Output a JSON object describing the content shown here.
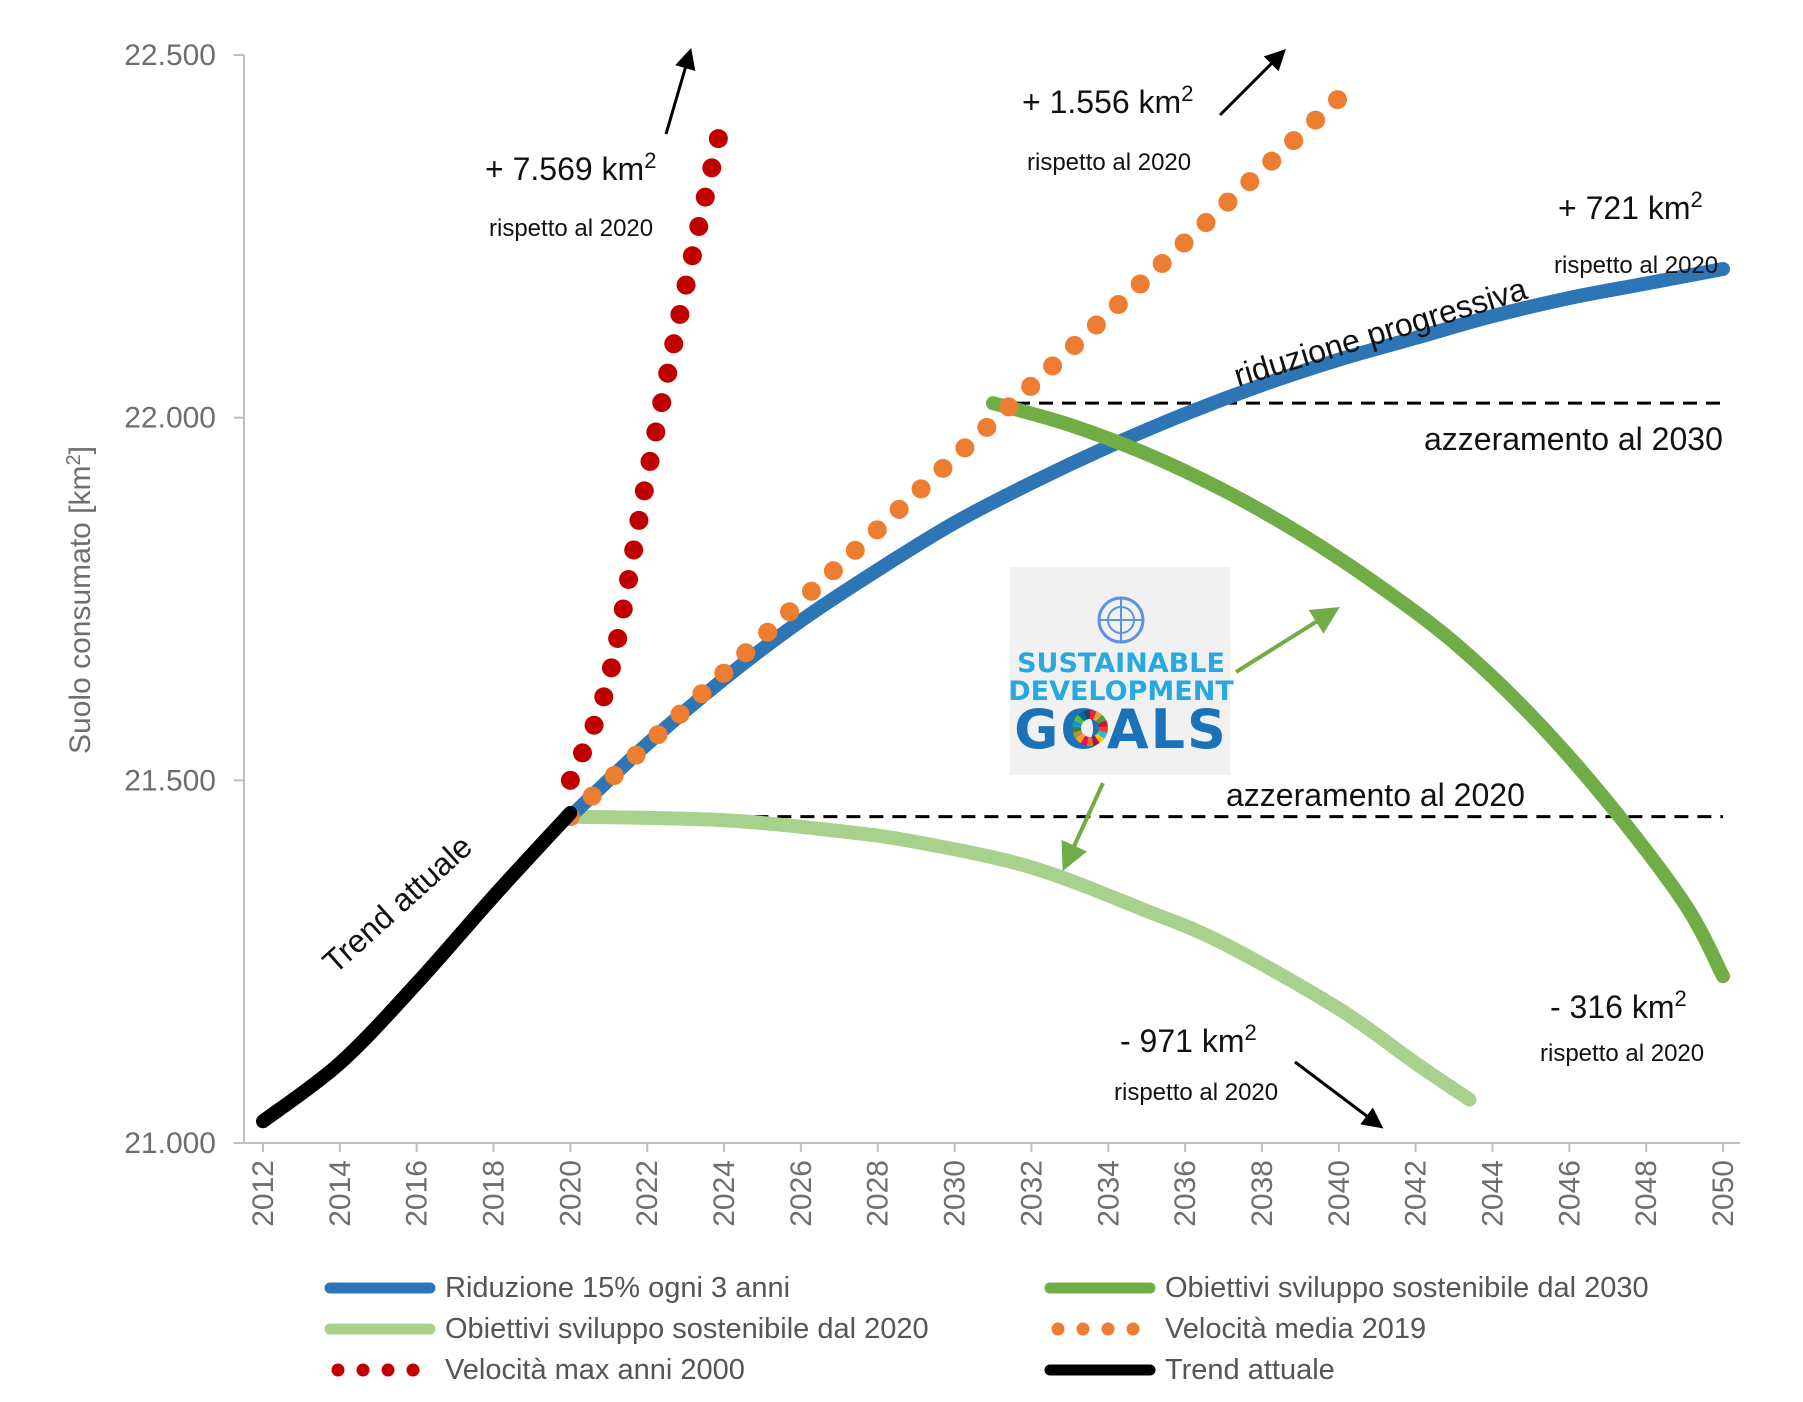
{
  "chart_data": {
    "type": "line",
    "ylabel": "Suolo consumato [km²]",
    "ylabel_unit_sup": "2",
    "xlabel": "",
    "xlim": [
      2012,
      2050
    ],
    "ylim": [
      21000,
      22500
    ],
    "x_ticks": [
      "2012",
      "2014",
      "2016",
      "2018",
      "2020",
      "2022",
      "2024",
      "2026",
      "2028",
      "2030",
      "2032",
      "2034",
      "2036",
      "2038",
      "2040",
      "2042",
      "2044",
      "2046",
      "2048",
      "2050"
    ],
    "y_ticks": [
      {
        "value": 21000,
        "label": "21.000"
      },
      {
        "value": 21500,
        "label": "21.500"
      },
      {
        "value": 22000,
        "label": "22.000"
      },
      {
        "value": 22500,
        "label": "22.500"
      }
    ],
    "grid": false,
    "legend_position": "bottom",
    "series": [
      {
        "name": "Riduzione 15% ogni 3 anni",
        "color": "#2e75b6",
        "style": "solid",
        "points": [
          [
            2020,
            21450
          ],
          [
            2022,
            21550
          ],
          [
            2024,
            21640
          ],
          [
            2026,
            21720
          ],
          [
            2028,
            21790
          ],
          [
            2030,
            21855
          ],
          [
            2032,
            21910
          ],
          [
            2034,
            21960
          ],
          [
            2036,
            22005
          ],
          [
            2038,
            22045
          ],
          [
            2040,
            22080
          ],
          [
            2042,
            22110
          ],
          [
            2044,
            22140
          ],
          [
            2046,
            22165
          ],
          [
            2048,
            22185
          ],
          [
            2050,
            22205
          ]
        ]
      },
      {
        "name": "Obiettivi sviluppo sostenibile dal 2030",
        "color": "#70ad47",
        "style": "solid",
        "points": [
          [
            2031,
            22020
          ],
          [
            2033,
            21990
          ],
          [
            2035,
            21950
          ],
          [
            2037,
            21900
          ],
          [
            2039,
            21840
          ],
          [
            2041,
            21770
          ],
          [
            2043,
            21690
          ],
          [
            2045,
            21590
          ],
          [
            2047,
            21470
          ],
          [
            2049,
            21330
          ],
          [
            2050,
            21230
          ]
        ]
      },
      {
        "name": "Obiettivi sviluppo sostenibile dal 2020",
        "color": "#a9d18e",
        "style": "solid",
        "points": [
          [
            2020,
            21450
          ],
          [
            2024,
            21445
          ],
          [
            2027,
            21430
          ],
          [
            2029,
            21415
          ],
          [
            2032,
            21380
          ],
          [
            2035,
            21320
          ],
          [
            2037,
            21275
          ],
          [
            2040,
            21185
          ],
          [
            2042,
            21110
          ],
          [
            2043.4,
            21060
          ]
        ]
      },
      {
        "name": "Velocità media 2019",
        "color": "#ed7d31",
        "style": "dotted",
        "points": [
          [
            2020,
            21450
          ],
          [
            2040.2,
            22450
          ]
        ]
      },
      {
        "name": "Velocità max anni 2000",
        "color": "#c00000",
        "style": "dotted",
        "points": [
          [
            2020,
            21500
          ],
          [
            2021,
            21640
          ],
          [
            2022,
            21920
          ],
          [
            2023,
            22180
          ],
          [
            2024,
            22420
          ]
        ]
      },
      {
        "name": "Trend attuale",
        "color": "#000000",
        "style": "solid",
        "points": [
          [
            2012,
            21030
          ],
          [
            2014,
            21110
          ],
          [
            2016,
            21220
          ],
          [
            2018,
            21340
          ],
          [
            2020,
            21455
          ]
        ]
      }
    ],
    "reference_lines": [
      {
        "label": "azzeramento al 2020",
        "y": 21450,
        "x_from": 2020,
        "x_to": 2050
      },
      {
        "label": "azzeramento al 2030",
        "y": 22020,
        "x_from": 2031,
        "x_to": 2050
      }
    ],
    "annotations": [
      {
        "value": "+ 7.569 km",
        "sup": "2",
        "note": "rispetto al 2020"
      },
      {
        "value": "+ 1.556 km",
        "sup": "2",
        "note": "rispetto al 2020"
      },
      {
        "value": "+ 721 km",
        "sup": "2",
        "note": "rispetto al 2020"
      },
      {
        "value": "- 316 km",
        "sup": "2",
        "note": "rispetto al 2020"
      },
      {
        "value": "- 971 km",
        "sup": "2",
        "note": "rispetto al 2020"
      }
    ],
    "line_labels": {
      "trend": "Trend attuale",
      "progressive": "riduzione progressiva"
    },
    "sdg_logo": {
      "line1": "SUSTAINABLE",
      "line2": "DEVELOPMENT",
      "line3": "GOALS"
    }
  }
}
